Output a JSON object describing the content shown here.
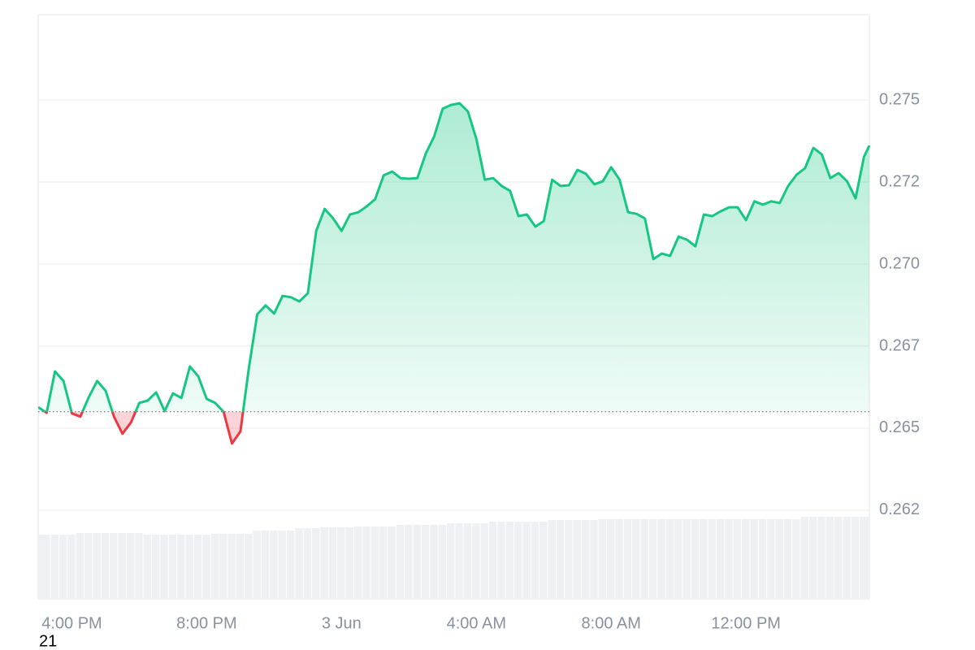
{
  "chart_data": {
    "type": "line",
    "x": [
      15,
      15.25,
      15.5,
      15.75,
      16,
      16.25,
      16.5,
      16.75,
      17,
      17.25,
      17.5,
      17.75,
      18,
      18.25,
      18.5,
      18.75,
      19,
      19.25,
      19.5,
      19.75,
      20,
      20.25,
      20.5,
      20.75,
      21,
      21.25,
      21.5,
      21.75,
      22,
      22.25,
      22.5,
      22.75,
      23,
      23.25,
      23.5,
      23.75,
      24,
      24.25,
      24.5,
      24.75,
      25,
      25.25,
      25.5,
      25.75,
      26,
      26.25,
      26.5,
      26.75,
      27,
      27.25,
      27.5,
      27.75,
      28,
      28.25,
      28.5,
      28.75,
      29,
      29.25,
      29.5,
      29.75,
      30,
      30.25,
      30.5,
      30.75,
      31,
      31.25,
      31.5,
      31.75,
      32,
      32.25,
      32.5,
      32.75,
      33,
      33.25,
      33.5,
      33.75,
      34,
      34.25,
      34.5,
      34.75,
      35,
      35.25,
      35.5,
      35.75,
      36,
      36.25,
      36.5,
      36.75,
      37,
      37.25,
      37.5,
      37.75,
      38,
      38.25,
      38.5,
      38.75,
      39,
      39.25,
      39.5,
      39.66
    ],
    "values": [
      0.26564,
      0.26547,
      0.26673,
      0.26644,
      0.26545,
      0.26535,
      0.26594,
      0.26644,
      0.26614,
      0.26535,
      0.26483,
      0.26517,
      0.26577,
      0.26584,
      0.26609,
      0.26552,
      0.26606,
      0.26592,
      0.26688,
      0.26658,
      0.26589,
      0.26577,
      0.2655,
      0.26453,
      0.2649,
      0.26683,
      0.26847,
      0.26874,
      0.26849,
      0.26903,
      0.26899,
      0.26886,
      0.26911,
      0.27101,
      0.27168,
      0.27139,
      0.27101,
      0.27151,
      0.27158,
      0.27176,
      0.27198,
      0.2727,
      0.27282,
      0.27262,
      0.2726,
      0.27262,
      0.27337,
      0.27389,
      0.27473,
      0.27485,
      0.2749,
      0.27465,
      0.27381,
      0.27257,
      0.27262,
      0.27238,
      0.27223,
      0.27146,
      0.27151,
      0.27114,
      0.27131,
      0.27257,
      0.27238,
      0.2724,
      0.27287,
      0.27275,
      0.27243,
      0.27252,
      0.27295,
      0.27257,
      0.27158,
      0.27153,
      0.27139,
      0.27015,
      0.27032,
      0.27025,
      0.27084,
      0.27074,
      0.27054,
      0.27151,
      0.27146,
      0.27161,
      0.27173,
      0.27173,
      0.27134,
      0.27191,
      0.27181,
      0.27191,
      0.27186,
      0.27238,
      0.27272,
      0.27292,
      0.27354,
      0.27334,
      0.27262,
      0.27277,
      0.27252,
      0.272,
      0.27327,
      0.27361
    ],
    "volume": [
      79,
      79,
      79,
      79,
      79,
      81,
      81,
      81,
      81,
      81,
      81,
      81,
      81,
      79,
      79,
      79,
      79,
      79,
      79,
      79,
      79,
      80,
      80,
      80,
      80,
      80,
      84,
      84,
      84,
      84,
      84,
      87,
      87,
      87,
      88,
      88,
      88,
      88,
      89,
      89,
      89,
      89,
      89,
      91,
      91,
      91,
      91,
      91,
      91,
      93,
      93,
      93,
      93,
      93,
      95,
      95,
      95,
      95,
      95,
      95,
      95,
      97,
      97,
      97,
      97,
      97,
      97,
      98,
      98,
      98,
      98,
      98,
      98,
      98,
      98,
      98,
      98,
      98,
      98,
      98,
      98,
      98,
      98,
      98,
      98,
      98,
      98,
      98,
      98,
      98,
      98,
      101,
      101,
      101,
      101,
      101,
      101,
      101,
      101,
      101
    ],
    "baseline": 0.2655,
    "color_up": "#16c784",
    "color_down": "#ea3943",
    "xlim": [
      15,
      39.66
    ],
    "xticks": [
      {
        "value": 16,
        "label": "4:00 PM"
      },
      {
        "value": 20,
        "label": "8:00 PM"
      },
      {
        "value": 24,
        "label": "3 Jun"
      },
      {
        "value": 28,
        "label": "4:00 AM"
      },
      {
        "value": 32,
        "label": "8:00 AM"
      },
      {
        "value": 36,
        "label": "12:00 PM"
      }
    ],
    "ylim": [
      0.2598,
      0.2776
    ],
    "yticks": [
      {
        "value": 0.2625,
        "label": "0.262"
      },
      0.265,
      {
        "value": 0.2675,
        "label": "0.267"
      },
      {
        "value": 0.27,
        "label": "0.270"
      },
      {
        "value": 0.2725,
        "label": "0.272"
      },
      0.275
    ],
    "grid": true,
    "annotation": "21"
  }
}
